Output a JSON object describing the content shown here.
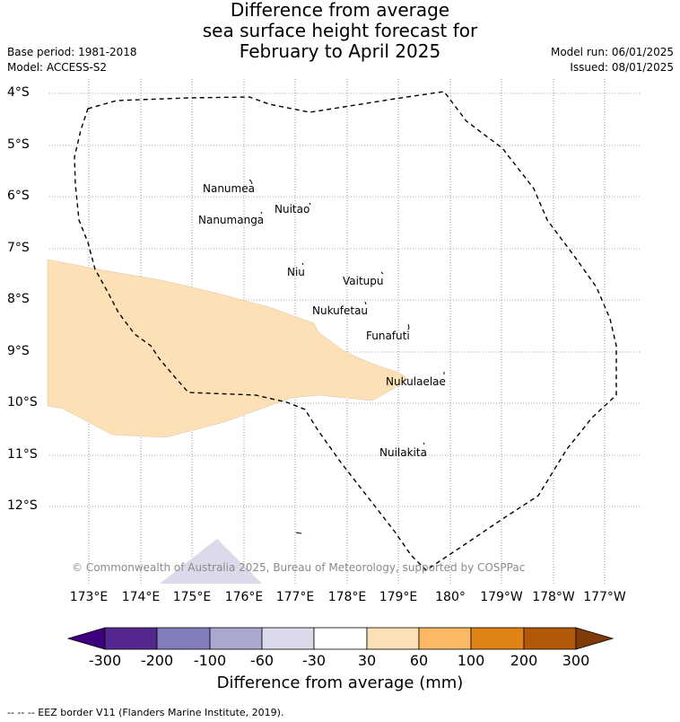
{
  "title": {
    "line1": "Difference from average",
    "line2": "sea surface height forecast for",
    "line3": "February to April 2025"
  },
  "meta": {
    "base_period": "Base period: 1981-2018",
    "model": "Model: ACCESS-S2",
    "model_run": "Model run: 06/01/2025",
    "issued": "Issued: 08/01/2025"
  },
  "axes": {
    "latitude_labels": [
      "4°S",
      "5°S",
      "6°S",
      "7°S",
      "8°S",
      "9°S",
      "10°S",
      "11°S",
      "12°S"
    ],
    "longitude_labels": [
      "173°E",
      "174°E",
      "175°E",
      "176°E",
      "177°E",
      "178°E",
      "179°E",
      "180°",
      "179°W",
      "178°W",
      "177°W"
    ]
  },
  "islands": [
    {
      "name": "Nanumea"
    },
    {
      "name": "Nuitao"
    },
    {
      "name": "Nanumanga"
    },
    {
      "name": "Niu"
    },
    {
      "name": "Vaitupu"
    },
    {
      "name": "Nukufetau"
    },
    {
      "name": "Funafuti"
    },
    {
      "name": "Nukulaelae"
    },
    {
      "name": "Nuilakita"
    }
  ],
  "copyright": "© Commonwealth of Australia 2025, Bureau of Meteorology, supported by COSPPac",
  "colorbar": {
    "labels": [
      "-300",
      "-200",
      "-100",
      "-60",
      "-30",
      "30",
      "60",
      "100",
      "200",
      "300"
    ],
    "colors": [
      "#3f007d",
      "#54278f",
      "#807dba",
      "#aba8d0",
      "#dadaeb",
      "#ffffff",
      "#fee0b6",
      "#fdb863",
      "#e08214",
      "#b35806",
      "#7f3b08"
    ],
    "title": "Difference from average (mm)"
  },
  "legend": "-- -- -- EEZ border V11 (Flanders Marine Institute, 2019)."
}
